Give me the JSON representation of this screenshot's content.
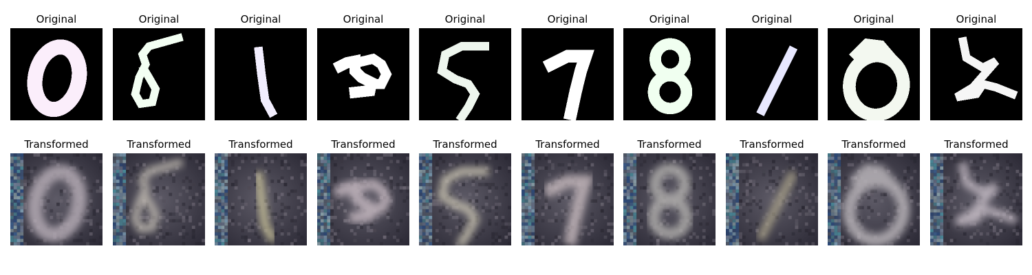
{
  "figure": {
    "original_title": "Original",
    "transformed_title": "Transformed",
    "pairs": [
      {
        "digit": "0",
        "original_color": "#fbeefb",
        "tint": "#b4aab4"
      },
      {
        "digit": "5",
        "original_color": "#f3fff3",
        "tint": "#bfb9b0"
      },
      {
        "digit": "1",
        "original_color": "#f2eefe",
        "tint": "#c9c29a"
      },
      {
        "digit": "3",
        "original_color": "#ffffff",
        "tint": "#c5b8c0"
      },
      {
        "digit": "5",
        "original_color": "#eef6ee",
        "tint": "#c8c2b0"
      },
      {
        "digit": "7",
        "original_color": "#ffffff",
        "tint": "#c2b6ba"
      },
      {
        "digit": "8",
        "original_color": "#f0fff0",
        "tint": "#b0aeac"
      },
      {
        "digit": "1",
        "original_color": "#e8e8ff",
        "tint": "#a8a088"
      },
      {
        "digit": "0",
        "original_color": "#f3f8f0",
        "tint": "#b8b3b8"
      },
      {
        "digit": "2",
        "original_color": "#f6f6f6",
        "tint": "#c4bbc4"
      }
    ]
  }
}
